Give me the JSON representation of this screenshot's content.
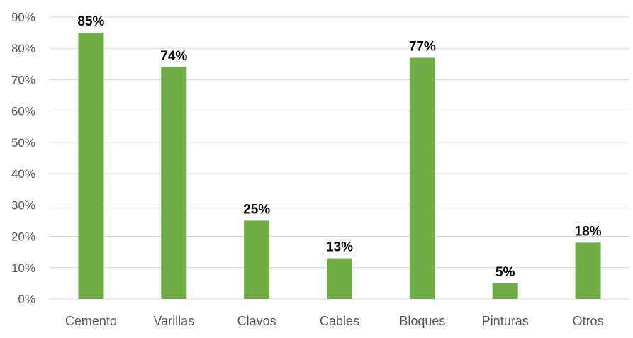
{
  "chart_data": {
    "type": "bar",
    "categories": [
      "Cemento",
      "Varillas",
      "Clavos",
      "Cables",
      "Bloques",
      "Pinturas",
      "Otros"
    ],
    "values": [
      85,
      74,
      25,
      13,
      77,
      5,
      18
    ],
    "data_labels": [
      "85%",
      "74%",
      "25%",
      "13%",
      "77%",
      "5%",
      "18%"
    ],
    "ylim": [
      0,
      90
    ],
    "yticks": [
      0,
      10,
      20,
      30,
      40,
      50,
      60,
      70,
      80,
      90
    ],
    "ytick_labels": [
      "0%",
      "10%",
      "20%",
      "30%",
      "40%",
      "50%",
      "60%",
      "70%",
      "80%",
      "90%"
    ],
    "grid": true,
    "bar_color": "#70ad47"
  }
}
